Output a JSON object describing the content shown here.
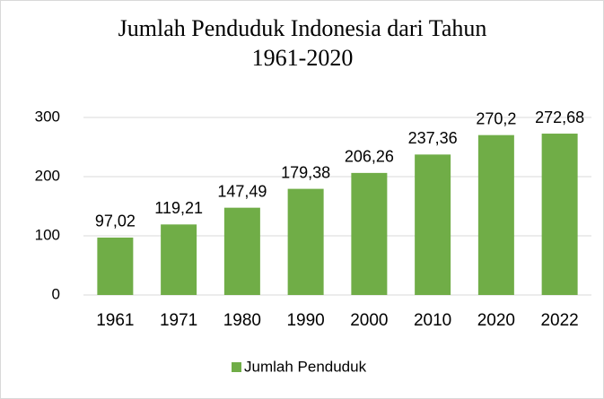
{
  "chart_data": {
    "type": "bar",
    "title": "Jumlah Penduduk Indonesia dari Tahun 1961-2020",
    "categories": [
      "1961",
      "1971",
      "1980",
      "1990",
      "2000",
      "2010",
      "2020",
      "2022"
    ],
    "series": [
      {
        "name": "Jumlah Penduduk",
        "color": "#70ad47",
        "values": [
          97.02,
          119.21,
          147.49,
          179.38,
          206.26,
          237.36,
          270.2,
          272.68
        ],
        "value_labels": [
          "97,02",
          "119,21",
          "147,49",
          "179,38",
          "206,26",
          "237,36",
          "270,2",
          "272,68"
        ]
      }
    ],
    "ylim": [
      0,
      300
    ],
    "yticks": [
      0,
      100,
      200,
      300
    ],
    "grid": true,
    "legend": "bottom"
  }
}
